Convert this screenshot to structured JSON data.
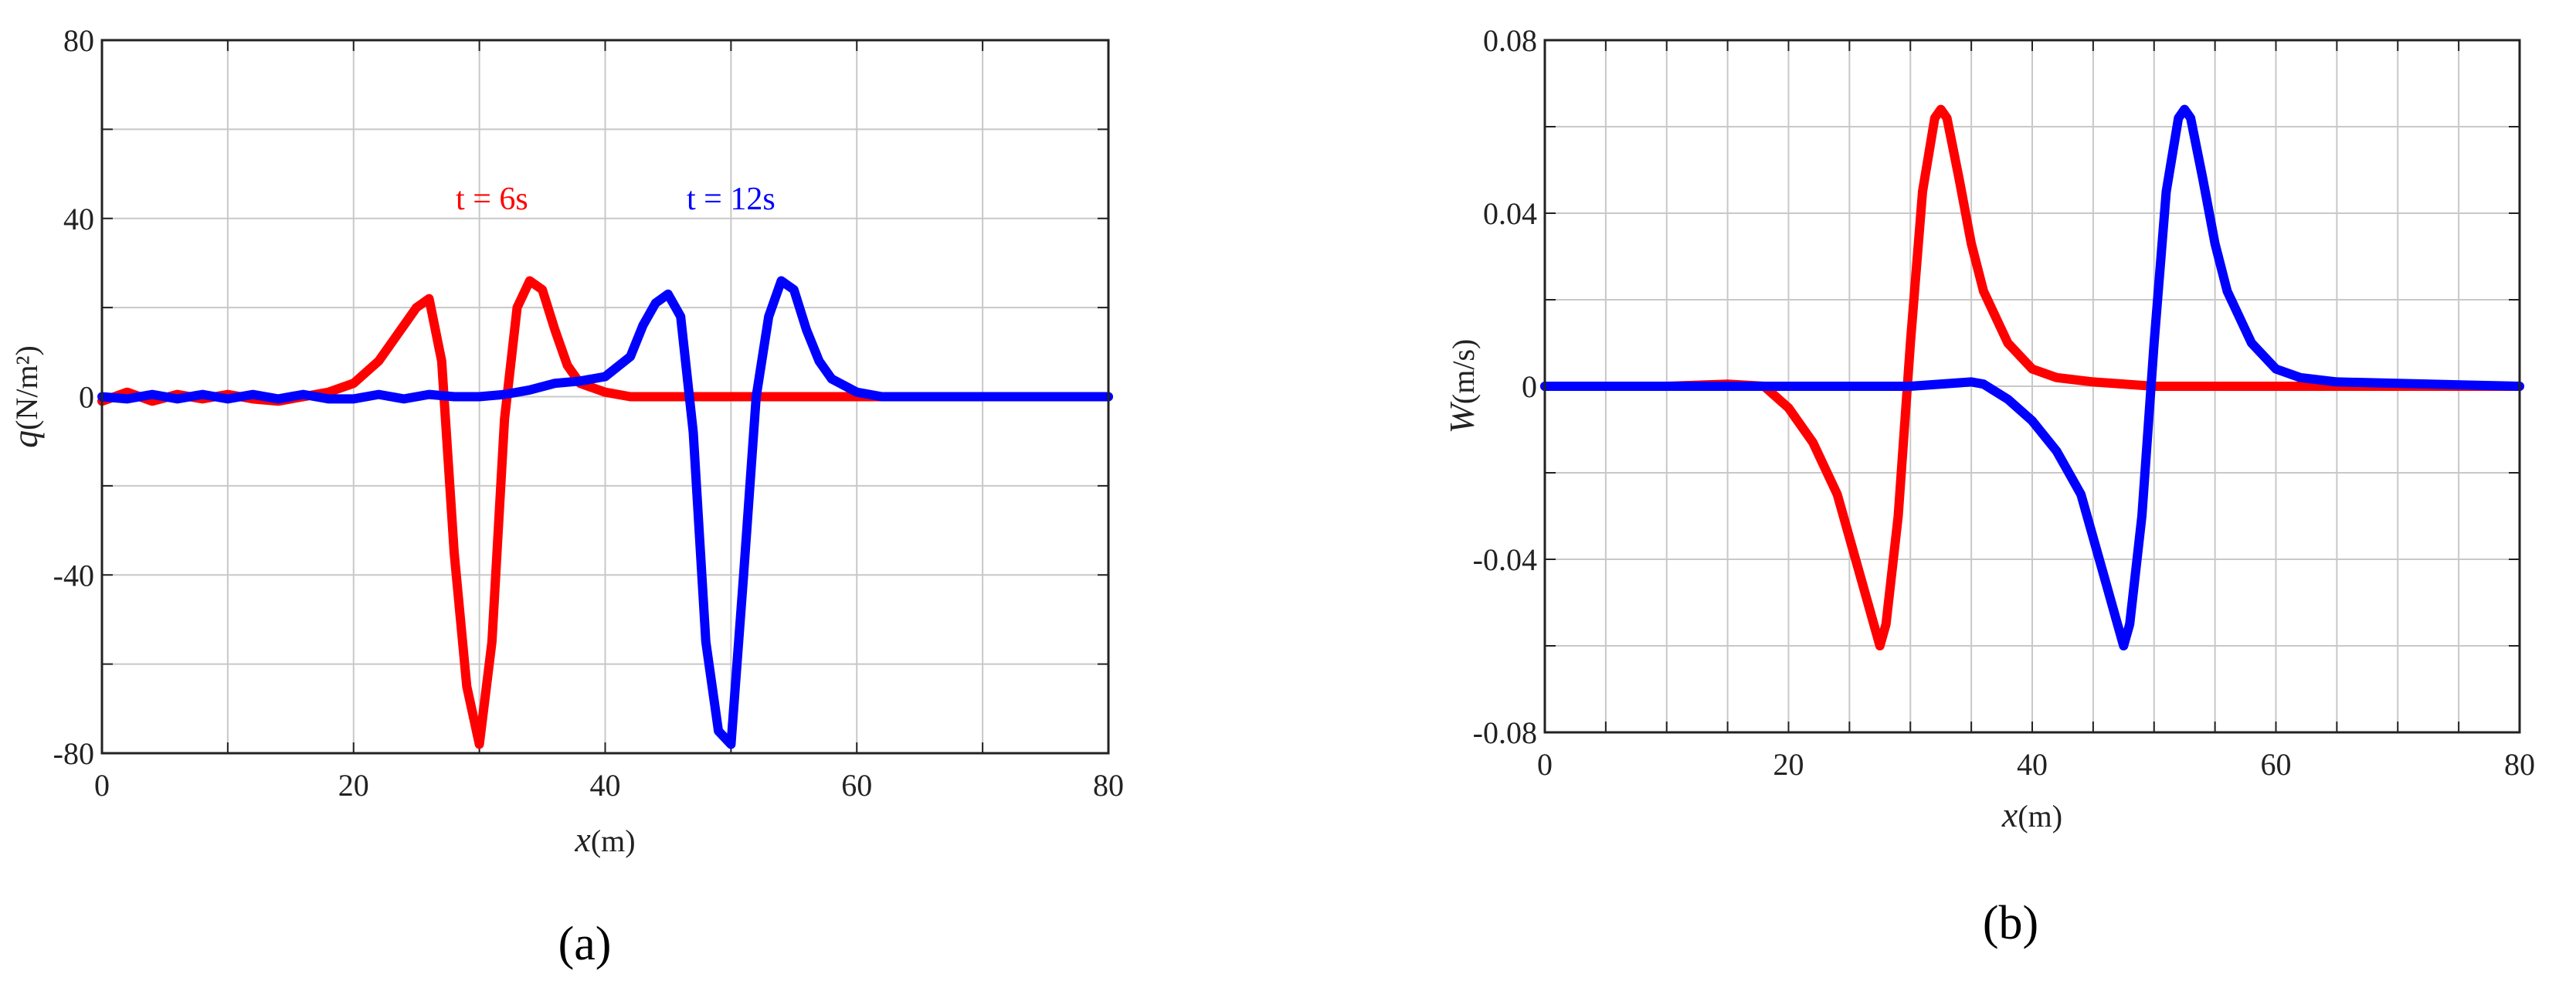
{
  "colors": {
    "red": "#ff0000",
    "blue": "#0000ff",
    "grid": "#c8c8c8",
    "axis": "#222222"
  },
  "chart_data": [
    {
      "type": "line",
      "panel_label": "(a)",
      "xlabel_var": "x",
      "xlabel_unit": "(m)",
      "ylabel_var": "q",
      "ylabel_unit": "(N/m²)",
      "xlim": [
        0,
        80
      ],
      "ylim": [
        -80,
        80
      ],
      "xticks": [
        0,
        20,
        40,
        60,
        80
      ],
      "yticks": [
        -80,
        -40,
        0,
        40,
        80
      ],
      "grid": true,
      "annotations": [
        {
          "text": "t = 6s",
          "x": 31,
          "y": 42,
          "color": "#ff0000"
        },
        {
          "text": "t = 12s",
          "x": 50,
          "y": 42,
          "color": "#0000ff"
        }
      ],
      "series": [
        {
          "color": "#ff0000",
          "x": [
            0,
            2,
            4,
            6,
            8,
            10,
            12,
            14,
            16,
            18,
            20,
            22,
            24,
            25,
            26,
            27,
            28,
            29,
            30,
            31,
            32,
            33,
            34,
            35,
            36,
            37,
            38,
            40,
            42,
            45,
            50,
            60,
            80
          ],
          "y": [
            -1,
            1,
            -1,
            0.5,
            -0.5,
            0.5,
            -0.5,
            -1,
            0,
            1,
            3,
            8,
            16,
            20,
            22,
            8,
            -35,
            -65,
            -78,
            -55,
            -5,
            20,
            26,
            24,
            15,
            7,
            3,
            1,
            0,
            0,
            0,
            0,
            0
          ]
        },
        {
          "color": "#0000ff",
          "x": [
            0,
            2,
            4,
            6,
            8,
            10,
            12,
            14,
            16,
            18,
            20,
            22,
            24,
            26,
            28,
            30,
            32,
            34,
            36,
            38,
            40,
            42,
            43,
            44,
            45,
            46,
            47,
            48,
            49,
            50,
            51,
            52,
            53,
            54,
            55,
            56,
            57,
            58,
            60,
            62,
            65,
            80
          ],
          "y": [
            0,
            -0.5,
            0.5,
            -0.5,
            0.5,
            -0.5,
            0.5,
            -0.5,
            0.5,
            -0.5,
            -0.5,
            0.5,
            -0.5,
            0.5,
            0,
            0,
            0.5,
            1.5,
            3,
            3.5,
            4.5,
            9,
            16,
            21,
            23,
            18,
            -8,
            -55,
            -75,
            -78,
            -40,
            0,
            18,
            26,
            24,
            15,
            8,
            4,
            1,
            0,
            0,
            0
          ]
        }
      ]
    },
    {
      "type": "line",
      "panel_label": "(b)",
      "xlabel_var": "x",
      "xlabel_unit": "(m)",
      "ylabel_var": "W",
      "ylabel_unit": "(m/s)",
      "xlim": [
        0,
        80
      ],
      "ylim": [
        -0.08,
        0.08
      ],
      "xticks": [
        0,
        20,
        40,
        60,
        80
      ],
      "yticks": [
        -0.08,
        -0.04,
        0,
        0.04,
        0.08
      ],
      "ytick_labels": [
        "-0.08",
        "-0.04",
        "0",
        "0.04",
        "0.08"
      ],
      "grid": true,
      "series": [
        {
          "color": "#ff0000",
          "x": [
            0,
            5,
            10,
            15,
            18,
            20,
            22,
            24,
            26,
            27,
            27.5,
            28,
            29,
            30,
            31,
            32,
            32.5,
            33,
            34,
            35,
            36,
            38,
            40,
            42,
            45,
            50,
            80
          ],
          "y": [
            0,
            0,
            0,
            0.0005,
            0,
            -0.005,
            -0.013,
            -0.025,
            -0.045,
            -0.055,
            -0.06,
            -0.055,
            -0.03,
            0.01,
            0.045,
            0.062,
            0.064,
            0.062,
            0.048,
            0.033,
            0.022,
            0.01,
            0.004,
            0.002,
            0.001,
            0,
            0
          ]
        },
        {
          "color": "#0000ff",
          "x": [
            0,
            5,
            10,
            15,
            20,
            25,
            30,
            35,
            36,
            38,
            40,
            42,
            44,
            46,
            47,
            47.5,
            48,
            49,
            50,
            51,
            52,
            52.5,
            53,
            54,
            55,
            56,
            58,
            60,
            62,
            65,
            80
          ],
          "y": [
            0,
            0,
            0,
            0,
            0,
            0,
            0,
            0.001,
            0.0005,
            -0.003,
            -0.008,
            -0.015,
            -0.025,
            -0.045,
            -0.055,
            -0.06,
            -0.055,
            -0.03,
            0.01,
            0.045,
            0.062,
            0.064,
            0.062,
            0.048,
            0.033,
            0.022,
            0.01,
            0.004,
            0.002,
            0.001,
            0
          ]
        }
      ]
    }
  ]
}
